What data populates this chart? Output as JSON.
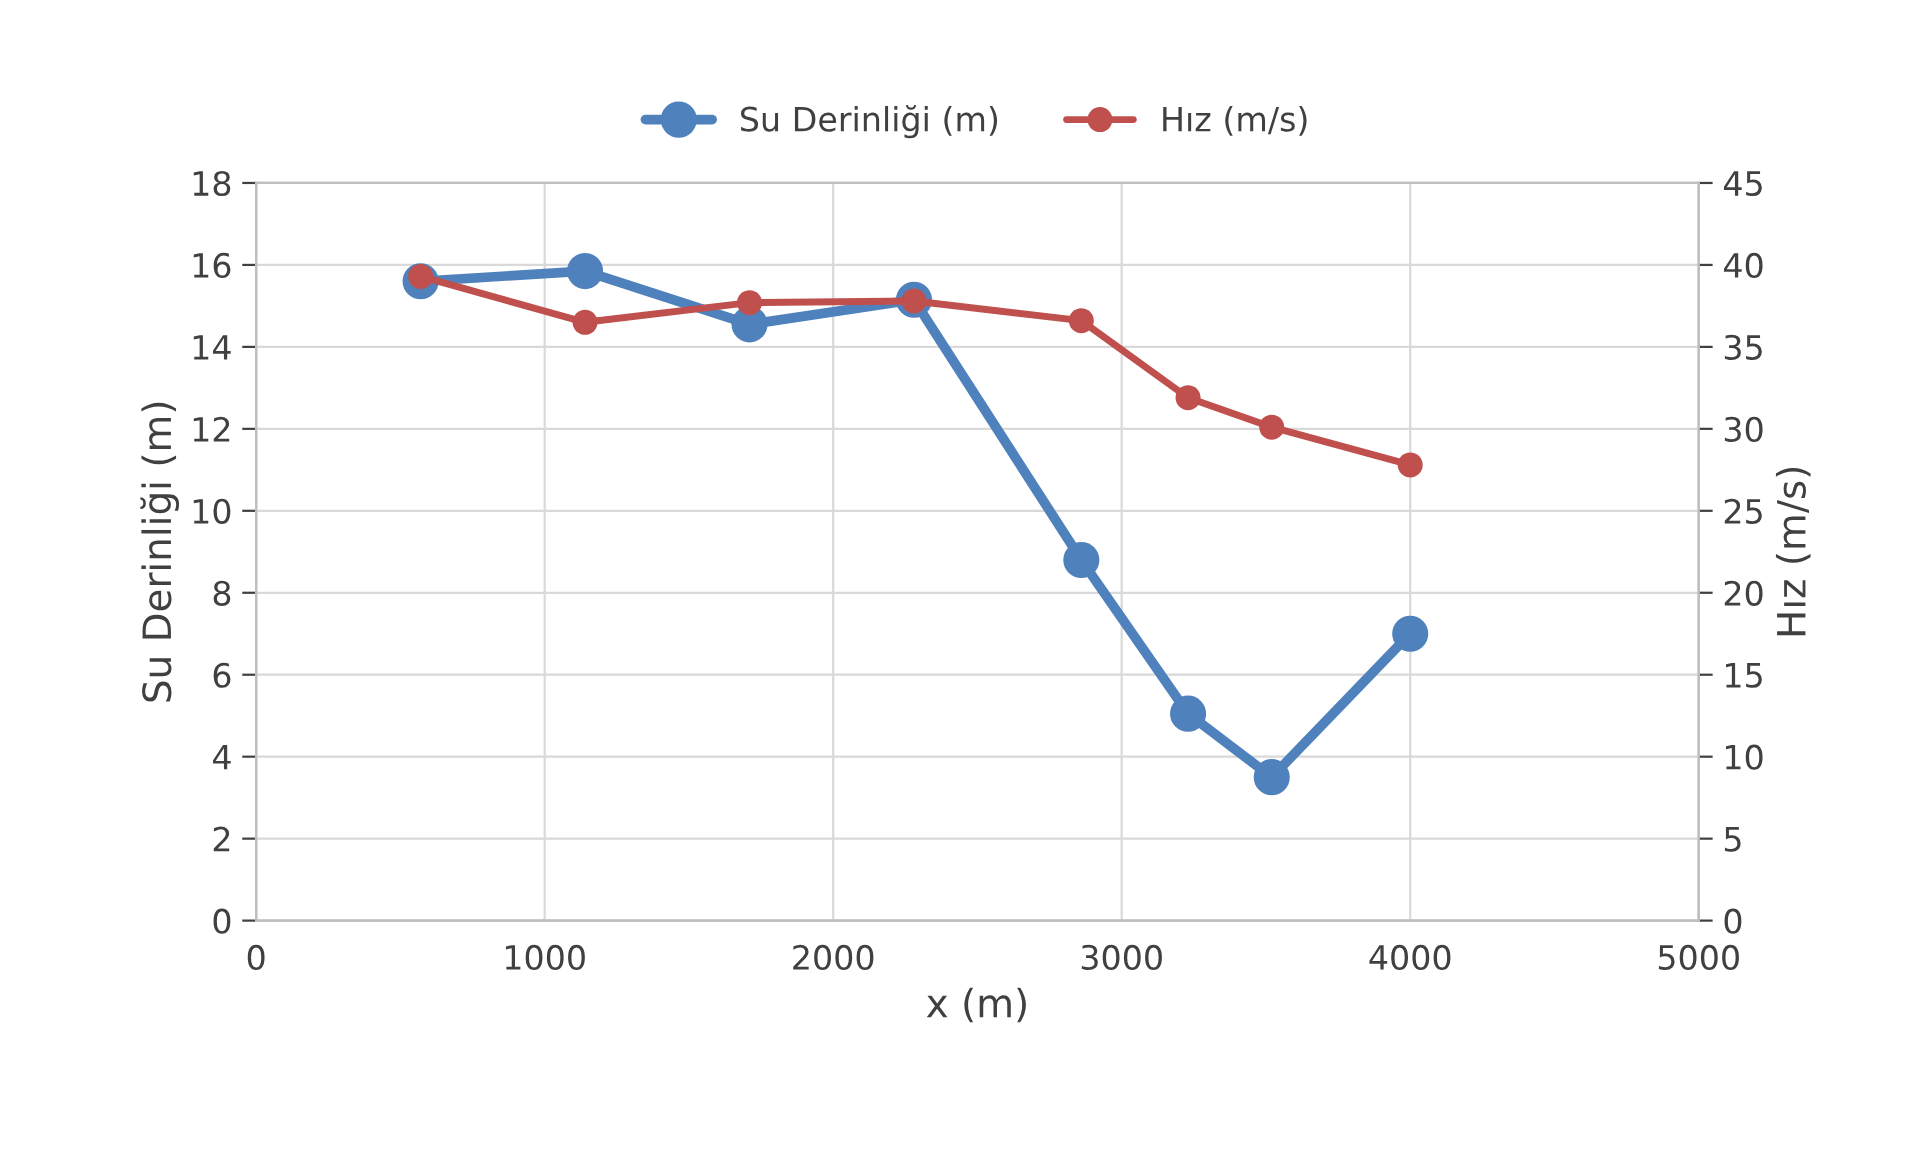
{
  "chart_data": {
    "type": "line",
    "xlabel": "x (m)",
    "ylabel": "Su Derinliği (m)",
    "y2label": "Hız (m/s)",
    "x": [
      570,
      1140,
      1710,
      2280,
      2860,
      3230,
      3520,
      4000
    ],
    "series": [
      {
        "name": "Su Derinliği (m)",
        "color": "#4f81bd",
        "values": [
          15.6,
          15.85,
          14.55,
          15.15,
          8.8,
          5.05,
          3.5,
          7.0
        ]
      },
      {
        "name": "Hız (m/s)",
        "color": "#c0504d",
        "axis": "y2",
        "values": [
          39.3,
          36.5,
          37.7,
          37.8,
          36.6,
          31.9,
          30.1,
          27.8
        ]
      }
    ],
    "xlim": [
      0,
      5000
    ],
    "xticks": [
      0,
      1000,
      2000,
      3000,
      4000,
      5000
    ],
    "ylim": [
      0,
      18
    ],
    "yticks": [
      0,
      2,
      4,
      6,
      8,
      10,
      12,
      14,
      16,
      18
    ],
    "y2lim": [
      0,
      45
    ],
    "y2ticks": [
      0,
      5,
      10,
      15,
      20,
      25,
      30,
      35,
      40,
      45
    ],
    "grid": true,
    "legend": "top",
    "marker": "circle",
    "line_style": "solid"
  }
}
